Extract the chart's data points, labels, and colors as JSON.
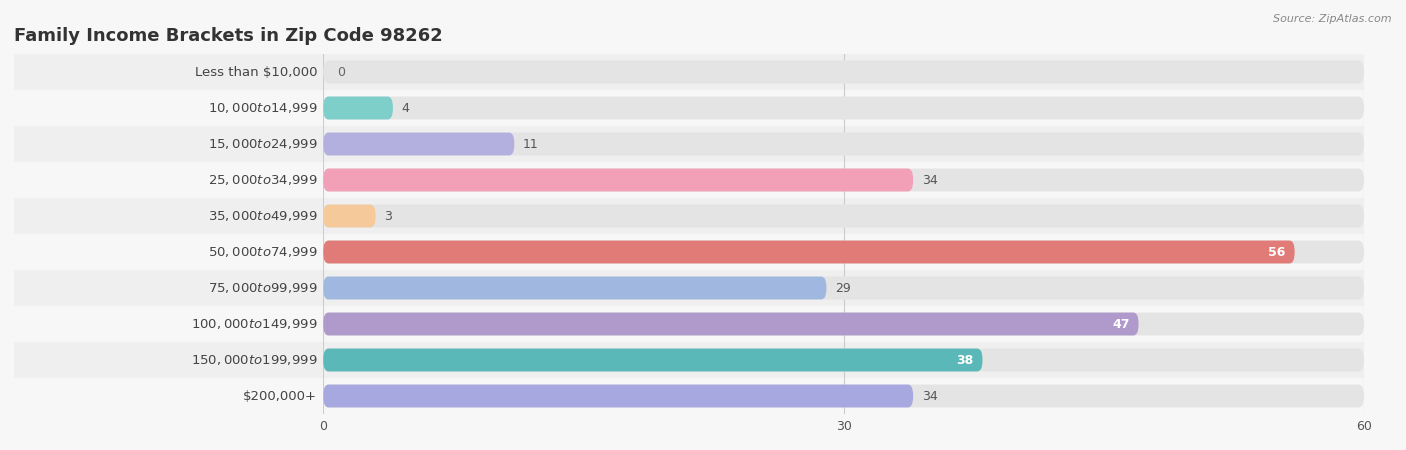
{
  "title": "Family Income Brackets in Zip Code 98262",
  "source": "Source: ZipAtlas.com",
  "categories": [
    "Less than $10,000",
    "$10,000 to $14,999",
    "$15,000 to $24,999",
    "$25,000 to $34,999",
    "$35,000 to $49,999",
    "$50,000 to $74,999",
    "$75,000 to $99,999",
    "$100,000 to $149,999",
    "$150,000 to $199,999",
    "$200,000+"
  ],
  "values": [
    0,
    4,
    11,
    34,
    3,
    56,
    29,
    47,
    38,
    34
  ],
  "bar_colors": [
    "#c9a8d4",
    "#7ececa",
    "#b3b0e0",
    "#f2a0b8",
    "#f5c99a",
    "#e07b78",
    "#a0b8e0",
    "#b09acc",
    "#5ab8b8",
    "#a8a8e0"
  ],
  "value_inside": [
    false,
    false,
    false,
    false,
    false,
    true,
    false,
    true,
    true,
    false
  ],
  "xlim": [
    0,
    60
  ],
  "xticks": [
    0,
    30,
    60
  ],
  "background_color": "#f7f7f7",
  "bar_bg_color": "#e4e4e4",
  "row_colors": [
    "#efefef",
    "#f7f7f7"
  ],
  "title_fontsize": 13,
  "label_fontsize": 9.5,
  "value_fontsize": 9,
  "bar_height": 0.62
}
